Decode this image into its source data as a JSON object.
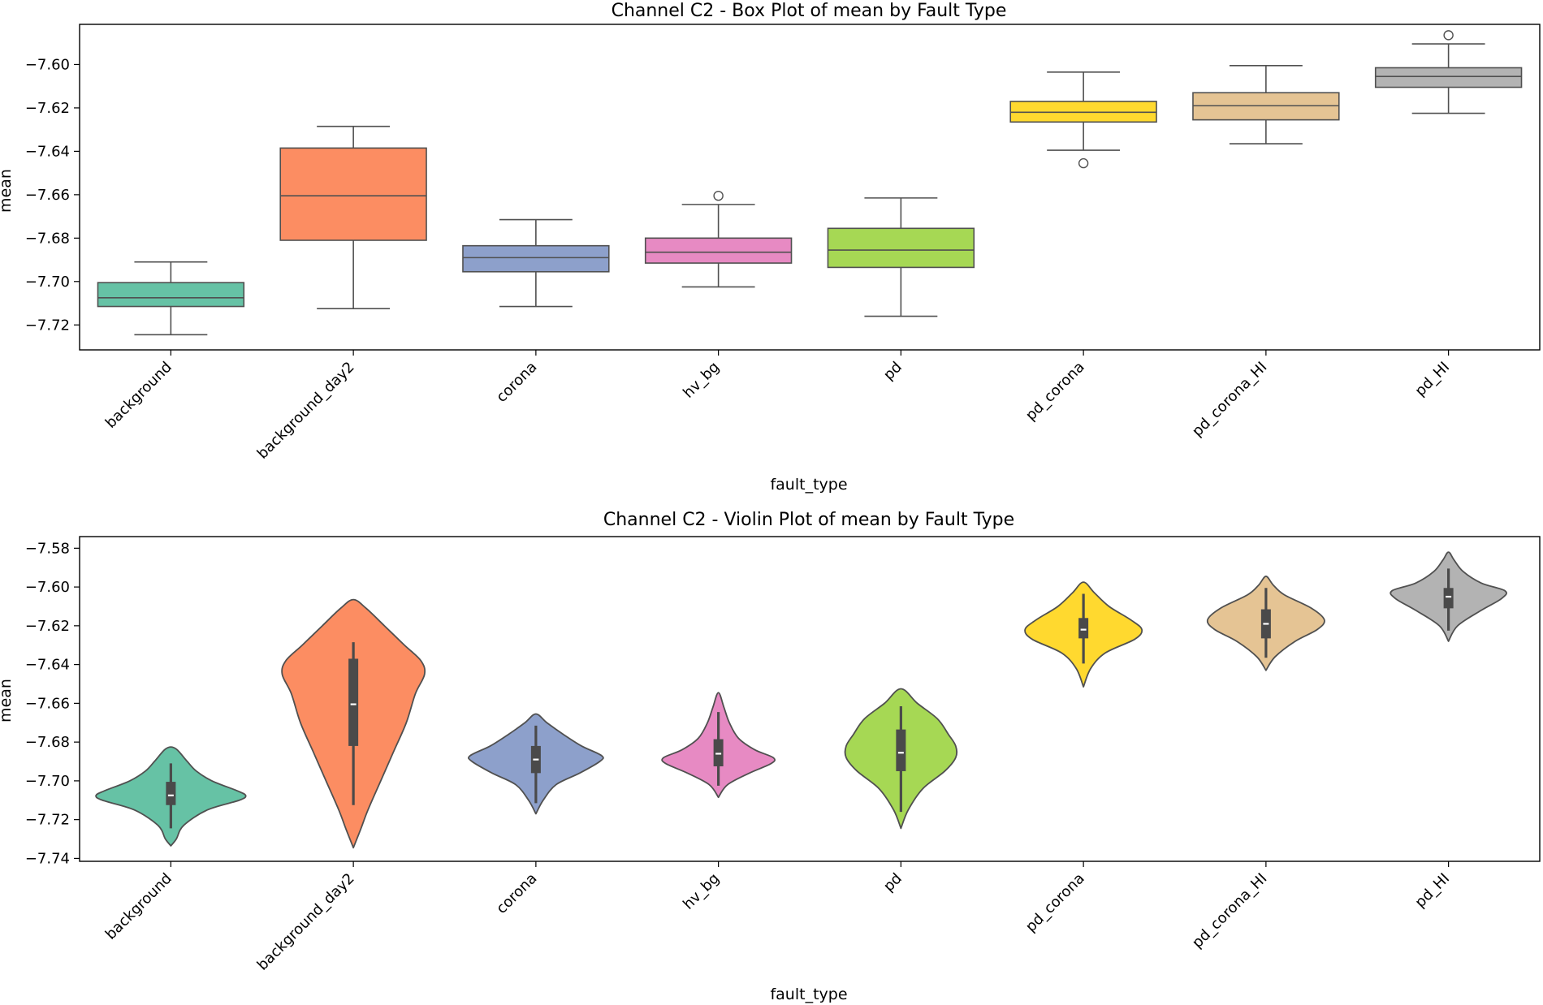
{
  "colors": {
    "background": "#66c2a5",
    "background_day2": "#fc8d62",
    "corona": "#8da0cb",
    "hv_bg": "#e78ac3",
    "pd": "#a6d854",
    "pd_corona": "#ffd92f",
    "pd_corona_HI": "#e5c494",
    "pd_HI": "#b3b3b3",
    "line": "#505050",
    "inner_box": "#4a4a4a"
  },
  "chart_data": [
    {
      "type": "box",
      "title": "Channel C2 - Box Plot of mean by Fault Type",
      "xlabel": "fault_type",
      "ylabel": "mean",
      "ylim": [
        -7.7315,
        -7.5815
      ],
      "yticks": [
        -7.72,
        -7.7,
        -7.68,
        -7.66,
        -7.64,
        -7.62,
        -7.6
      ],
      "ytick_labels": [
        "−7.72",
        "−7.70",
        "−7.68",
        "−7.66",
        "−7.64",
        "−7.62",
        "−7.60"
      ],
      "grid": false,
      "categories": [
        "background",
        "background_day2",
        "corona",
        "hv_bg",
        "pd",
        "pd_corona",
        "pd_corona_HI",
        "pd_HI"
      ],
      "boxes": [
        {
          "whislo": -7.7245,
          "q1": -7.7115,
          "med": -7.7075,
          "q3": -7.7005,
          "whishi": -7.691,
          "fliers": []
        },
        {
          "whislo": -7.7125,
          "q1": -7.681,
          "med": -7.6605,
          "q3": -7.6385,
          "whishi": -7.6285,
          "fliers": []
        },
        {
          "whislo": -7.7115,
          "q1": -7.6955,
          "med": -7.689,
          "q3": -7.6835,
          "whishi": -7.6715,
          "fliers": []
        },
        {
          "whislo": -7.7025,
          "q1": -7.6915,
          "med": -7.6865,
          "q3": -7.68,
          "whishi": -7.6645,
          "fliers": [
            -7.6605
          ]
        },
        {
          "whislo": -7.716,
          "q1": -7.6935,
          "med": -7.6855,
          "q3": -7.6755,
          "whishi": -7.6615,
          "fliers": []
        },
        {
          "whislo": -7.6395,
          "q1": -7.6265,
          "med": -7.622,
          "q3": -7.617,
          "whishi": -7.6035,
          "fliers": [
            -7.6455
          ]
        },
        {
          "whislo": -7.6365,
          "q1": -7.6255,
          "med": -7.619,
          "q3": -7.613,
          "whishi": -7.6005,
          "fliers": []
        },
        {
          "whislo": -7.6225,
          "q1": -7.6105,
          "med": -7.6055,
          "q3": -7.6015,
          "whishi": -7.5905,
          "fliers": [
            -7.5865
          ]
        }
      ]
    },
    {
      "type": "violin",
      "title": "Channel C2 - Violin Plot of mean by Fault Type",
      "xlabel": "fault_type",
      "ylabel": "mean",
      "ylim": [
        -7.7415,
        -7.574
      ],
      "yticks": [
        -7.74,
        -7.72,
        -7.7,
        -7.68,
        -7.66,
        -7.64,
        -7.62,
        -7.6,
        -7.58
      ],
      "ytick_labels": [
        "−7.74",
        "−7.72",
        "−7.70",
        "−7.68",
        "−7.66",
        "−7.64",
        "−7.62",
        "−7.60",
        "−7.58"
      ],
      "grid": false,
      "categories": [
        "background",
        "background_day2",
        "corona",
        "hv_bg",
        "pd",
        "pd_corona",
        "pd_corona_HI",
        "pd_HI"
      ],
      "violins": [
        {
          "density": [
            [
              -7.7335,
              0
            ],
            [
              -7.73,
              0.06
            ],
            [
              -7.723,
              0.14
            ],
            [
              -7.715,
              0.4
            ],
            [
              -7.71,
              0.75
            ],
            [
              -7.7075,
              0.82
            ],
            [
              -7.705,
              0.72
            ],
            [
              -7.7,
              0.45
            ],
            [
              -7.695,
              0.28
            ],
            [
              -7.69,
              0.18
            ],
            [
              -7.684,
              0.07
            ],
            [
              -7.6825,
              0
            ]
          ],
          "q1": -7.7125,
          "med": -7.7075,
          "q3": -7.7005,
          "whislo": -7.7245,
          "whishi": -7.691
        },
        {
          "density": [
            [
              -7.7345,
              0
            ],
            [
              -7.725,
              0.08
            ],
            [
              -7.715,
              0.16
            ],
            [
              -7.7,
              0.3
            ],
            [
              -7.685,
              0.44
            ],
            [
              -7.67,
              0.58
            ],
            [
              -7.655,
              0.68
            ],
            [
              -7.645,
              0.78
            ],
            [
              -7.638,
              0.74
            ],
            [
              -7.63,
              0.56
            ],
            [
              -7.62,
              0.34
            ],
            [
              -7.611,
              0.14
            ],
            [
              -7.6065,
              0
            ]
          ],
          "q1": -7.682,
          "med": -7.6605,
          "q3": -7.637,
          "whislo": -7.7125,
          "whishi": -7.6285
        },
        {
          "density": [
            [
              -7.717,
              0
            ],
            [
              -7.71,
              0.08
            ],
            [
              -7.702,
              0.22
            ],
            [
              -7.696,
              0.48
            ],
            [
              -7.69,
              0.7
            ],
            [
              -7.687,
              0.72
            ],
            [
              -7.682,
              0.5
            ],
            [
              -7.676,
              0.3
            ],
            [
              -7.67,
              0.12
            ],
            [
              -7.6655,
              0
            ]
          ],
          "q1": -7.696,
          "med": -7.689,
          "q3": -7.682,
          "whislo": -7.7115,
          "whishi": -7.6715
        },
        {
          "density": [
            [
              -7.7085,
              0
            ],
            [
              -7.702,
              0.1
            ],
            [
              -7.696,
              0.34
            ],
            [
              -7.691,
              0.58
            ],
            [
              -7.688,
              0.6
            ],
            [
              -7.684,
              0.4
            ],
            [
              -7.678,
              0.22
            ],
            [
              -7.67,
              0.12
            ],
            [
              -7.662,
              0.06
            ],
            [
              -7.6545,
              0
            ]
          ],
          "q1": -7.6925,
          "med": -7.686,
          "q3": -7.6785,
          "whislo": -7.7025,
          "whishi": -7.6645
        },
        {
          "density": [
            [
              -7.7245,
              0
            ],
            [
              -7.715,
              0.08
            ],
            [
              -7.704,
              0.24
            ],
            [
              -7.695,
              0.48
            ],
            [
              -7.688,
              0.6
            ],
            [
              -7.682,
              0.6
            ],
            [
              -7.676,
              0.52
            ],
            [
              -7.668,
              0.4
            ],
            [
              -7.66,
              0.18
            ],
            [
              -7.6525,
              0
            ]
          ],
          "q1": -7.695,
          "med": -7.6855,
          "q3": -7.6735,
          "whislo": -7.716,
          "whishi": -7.6615
        },
        {
          "density": [
            [
              -7.6515,
              0
            ],
            [
              -7.642,
              0.08
            ],
            [
              -7.634,
              0.24
            ],
            [
              -7.627,
              0.56
            ],
            [
              -7.622,
              0.64
            ],
            [
              -7.617,
              0.52
            ],
            [
              -7.61,
              0.28
            ],
            [
              -7.603,
              0.12
            ],
            [
              -7.5975,
              0
            ]
          ],
          "q1": -7.6265,
          "med": -7.622,
          "q3": -7.616,
          "whislo": -7.6395,
          "whishi": -7.6035
        },
        {
          "density": [
            [
              -7.643,
              0
            ],
            [
              -7.636,
              0.1
            ],
            [
              -7.628,
              0.32
            ],
            [
              -7.622,
              0.56
            ],
            [
              -7.617,
              0.64
            ],
            [
              -7.611,
              0.5
            ],
            [
              -7.604,
              0.2
            ],
            [
              -7.599,
              0.08
            ],
            [
              -7.5945,
              0
            ]
          ],
          "q1": -7.6265,
          "med": -7.619,
          "q3": -7.6115,
          "whislo": -7.6365,
          "whishi": -7.6005
        },
        {
          "density": [
            [
              -7.628,
              0
            ],
            [
              -7.62,
              0.1
            ],
            [
              -7.612,
              0.36
            ],
            [
              -7.606,
              0.58
            ],
            [
              -7.602,
              0.62
            ],
            [
              -7.598,
              0.36
            ],
            [
              -7.592,
              0.16
            ],
            [
              -7.586,
              0.06
            ],
            [
              -7.582,
              0
            ]
          ],
          "q1": -7.611,
          "med": -7.605,
          "q3": -7.6005,
          "whislo": -7.6225,
          "whishi": -7.5905
        }
      ]
    }
  ]
}
